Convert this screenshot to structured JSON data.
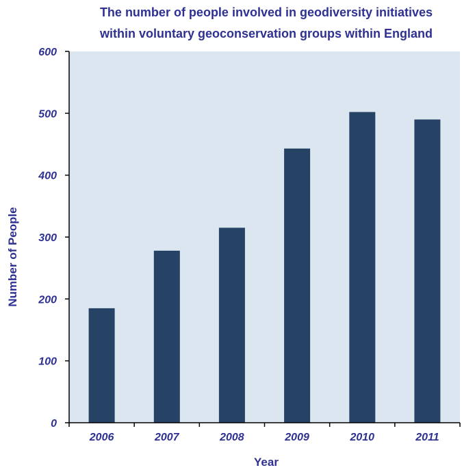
{
  "chart_data": {
    "type": "bar",
    "title_lines": [
      "The number of people involved in geodiversity initiatives",
      "within voluntary geoconservation groups within England"
    ],
    "xlabel": "Year",
    "ylabel": "Number of People",
    "categories": [
      "2006",
      "2007",
      "2008",
      "2009",
      "2010",
      "2011"
    ],
    "values": [
      185,
      278,
      315,
      443,
      502,
      490
    ],
    "ylim": [
      0,
      600
    ],
    "yticks": [
      0,
      100,
      200,
      300,
      400,
      500,
      600
    ],
    "grid": false,
    "legend": "none"
  },
  "colors": {
    "bar": "#264366",
    "plot_background": "#dce6f1",
    "text": "#2e3192",
    "axis": "#000000"
  }
}
